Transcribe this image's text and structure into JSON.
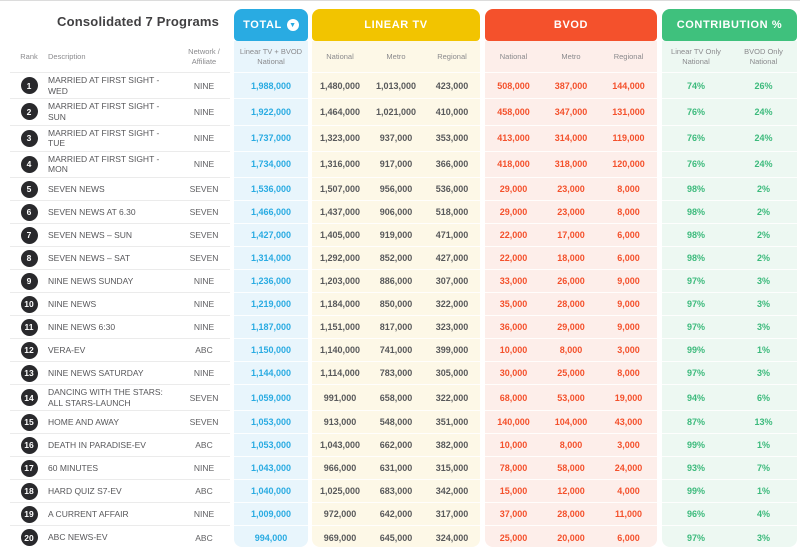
{
  "title": "Consolidated 7 Programs",
  "icons": {
    "total_sort": "▼"
  },
  "chart_data": {
    "type": "table",
    "title": "Consolidated 7 Programs",
    "left_columns": [
      {
        "id": "rank",
        "label": "Rank"
      },
      {
        "id": "description",
        "label": "Description"
      },
      {
        "id": "network",
        "label": "Network /\nAffiliate"
      }
    ],
    "column_groups": [
      {
        "id": "total",
        "label": "TOTAL",
        "color": "#29abe2",
        "tint": "#e8f5fc",
        "value_color": "#29abe2",
        "columns": [
          "Linear TV + BVOD\nNational"
        ]
      },
      {
        "id": "linear_tv",
        "label": "LINEAR TV",
        "color": "#f2c400",
        "tint": "#fdf8e7",
        "value_color": "#58595b",
        "columns": [
          "National",
          "Metro",
          "Regional"
        ]
      },
      {
        "id": "bvod",
        "label": "BVOD",
        "color": "#f4512c",
        "tint": "#fdeeea",
        "value_color": "#f4512c",
        "columns": [
          "National",
          "Metro",
          "Regional"
        ]
      },
      {
        "id": "contribution",
        "label": "CONTRIBUTION %",
        "color": "#3fc17d",
        "tint": "#edf8f2",
        "value_color": "#3cba7c",
        "columns": [
          "Linear TV Only\nNational",
          "BVOD Only\nNational"
        ]
      }
    ],
    "rows": [
      {
        "rank": "1",
        "description": "MARRIED AT FIRST SIGHT -WED",
        "network": "NINE",
        "total": "1,988,000",
        "linear_tv": [
          "1,480,000",
          "1,013,000",
          "423,000"
        ],
        "bvod": [
          "508,000",
          "387,000",
          "144,000"
        ],
        "contribution": [
          "74%",
          "26%"
        ]
      },
      {
        "rank": "2",
        "description": "MARRIED AT FIRST SIGHT -SUN",
        "network": "NINE",
        "total": "1,922,000",
        "linear_tv": [
          "1,464,000",
          "1,021,000",
          "410,000"
        ],
        "bvod": [
          "458,000",
          "347,000",
          "131,000"
        ],
        "contribution": [
          "76%",
          "24%"
        ]
      },
      {
        "rank": "3",
        "description": "MARRIED AT FIRST SIGHT -TUE",
        "network": "NINE",
        "total": "1,737,000",
        "linear_tv": [
          "1,323,000",
          "937,000",
          "353,000"
        ],
        "bvod": [
          "413,000",
          "314,000",
          "119,000"
        ],
        "contribution": [
          "76%",
          "24%"
        ]
      },
      {
        "rank": "4",
        "description": "MARRIED AT FIRST SIGHT -MON",
        "network": "NINE",
        "total": "1,734,000",
        "linear_tv": [
          "1,316,000",
          "917,000",
          "366,000"
        ],
        "bvod": [
          "418,000",
          "318,000",
          "120,000"
        ],
        "contribution": [
          "76%",
          "24%"
        ]
      },
      {
        "rank": "5",
        "description": "SEVEN NEWS",
        "network": "SEVEN",
        "total": "1,536,000",
        "linear_tv": [
          "1,507,000",
          "956,000",
          "536,000"
        ],
        "bvod": [
          "29,000",
          "23,000",
          "8,000"
        ],
        "contribution": [
          "98%",
          "2%"
        ]
      },
      {
        "rank": "6",
        "description": "SEVEN NEWS AT 6.30",
        "network": "SEVEN",
        "total": "1,466,000",
        "linear_tv": [
          "1,437,000",
          "906,000",
          "518,000"
        ],
        "bvod": [
          "29,000",
          "23,000",
          "8,000"
        ],
        "contribution": [
          "98%",
          "2%"
        ]
      },
      {
        "rank": "7",
        "description": "SEVEN NEWS – SUN",
        "network": "SEVEN",
        "total": "1,427,000",
        "linear_tv": [
          "1,405,000",
          "919,000",
          "471,000"
        ],
        "bvod": [
          "22,000",
          "17,000",
          "6,000"
        ],
        "contribution": [
          "98%",
          "2%"
        ]
      },
      {
        "rank": "8",
        "description": "SEVEN NEWS – SAT",
        "network": "SEVEN",
        "total": "1,314,000",
        "linear_tv": [
          "1,292,000",
          "852,000",
          "427,000"
        ],
        "bvod": [
          "22,000",
          "18,000",
          "6,000"
        ],
        "contribution": [
          "98%",
          "2%"
        ]
      },
      {
        "rank": "9",
        "description": "NINE NEWS SUNDAY",
        "network": "NINE",
        "total": "1,236,000",
        "linear_tv": [
          "1,203,000",
          "886,000",
          "307,000"
        ],
        "bvod": [
          "33,000",
          "26,000",
          "9,000"
        ],
        "contribution": [
          "97%",
          "3%"
        ]
      },
      {
        "rank": "10",
        "description": "NINE NEWS",
        "network": "NINE",
        "total": "1,219,000",
        "linear_tv": [
          "1,184,000",
          "850,000",
          "322,000"
        ],
        "bvod": [
          "35,000",
          "28,000",
          "9,000"
        ],
        "contribution": [
          "97%",
          "3%"
        ]
      },
      {
        "rank": "11",
        "description": "NINE NEWS 6:30",
        "network": "NINE",
        "total": "1,187,000",
        "linear_tv": [
          "1,151,000",
          "817,000",
          "323,000"
        ],
        "bvod": [
          "36,000",
          "29,000",
          "9,000"
        ],
        "contribution": [
          "97%",
          "3%"
        ]
      },
      {
        "rank": "12",
        "description": "VERA-EV",
        "network": "ABC",
        "total": "1,150,000",
        "linear_tv": [
          "1,140,000",
          "741,000",
          "399,000"
        ],
        "bvod": [
          "10,000",
          "8,000",
          "3,000"
        ],
        "contribution": [
          "99%",
          "1%"
        ]
      },
      {
        "rank": "13",
        "description": "NINE NEWS SATURDAY",
        "network": "NINE",
        "total": "1,144,000",
        "linear_tv": [
          "1,114,000",
          "783,000",
          "305,000"
        ],
        "bvod": [
          "30,000",
          "25,000",
          "8,000"
        ],
        "contribution": [
          "97%",
          "3%"
        ]
      },
      {
        "rank": "14",
        "description": "DANCING WITH THE STARS: ALL STARS-LAUNCH",
        "network": "SEVEN",
        "total": "1,059,000",
        "linear_tv": [
          "991,000",
          "658,000",
          "322,000"
        ],
        "bvod": [
          "68,000",
          "53,000",
          "19,000"
        ],
        "contribution": [
          "94%",
          "6%"
        ]
      },
      {
        "rank": "15",
        "description": "HOME AND AWAY",
        "network": "SEVEN",
        "total": "1,053,000",
        "linear_tv": [
          "913,000",
          "548,000",
          "351,000"
        ],
        "bvod": [
          "140,000",
          "104,000",
          "43,000"
        ],
        "contribution": [
          "87%",
          "13%"
        ]
      },
      {
        "rank": "16",
        "description": "DEATH IN PARADISE-EV",
        "network": "ABC",
        "total": "1,053,000",
        "linear_tv": [
          "1,043,000",
          "662,000",
          "382,000"
        ],
        "bvod": [
          "10,000",
          "8,000",
          "3,000"
        ],
        "contribution": [
          "99%",
          "1%"
        ]
      },
      {
        "rank": "17",
        "description": "60 MINUTES",
        "network": "NINE",
        "total": "1,043,000",
        "linear_tv": [
          "966,000",
          "631,000",
          "315,000"
        ],
        "bvod": [
          "78,000",
          "58,000",
          "24,000"
        ],
        "contribution": [
          "93%",
          "7%"
        ]
      },
      {
        "rank": "18",
        "description": "HARD QUIZ S7-EV",
        "network": "ABC",
        "total": "1,040,000",
        "linear_tv": [
          "1,025,000",
          "683,000",
          "342,000"
        ],
        "bvod": [
          "15,000",
          "12,000",
          "4,000"
        ],
        "contribution": [
          "99%",
          "1%"
        ]
      },
      {
        "rank": "19",
        "description": "A CURRENT AFFAIR",
        "network": "NINE",
        "total": "1,009,000",
        "linear_tv": [
          "972,000",
          "642,000",
          "317,000"
        ],
        "bvod": [
          "37,000",
          "28,000",
          "11,000"
        ],
        "contribution": [
          "96%",
          "4%"
        ]
      },
      {
        "rank": "20",
        "description": "ABC NEWS-EV",
        "network": "ABC",
        "total": "994,000",
        "linear_tv": [
          "969,000",
          "645,000",
          "324,000"
        ],
        "bvod": [
          "25,000",
          "20,000",
          "6,000"
        ],
        "contribution": [
          "97%",
          "3%"
        ]
      }
    ]
  }
}
